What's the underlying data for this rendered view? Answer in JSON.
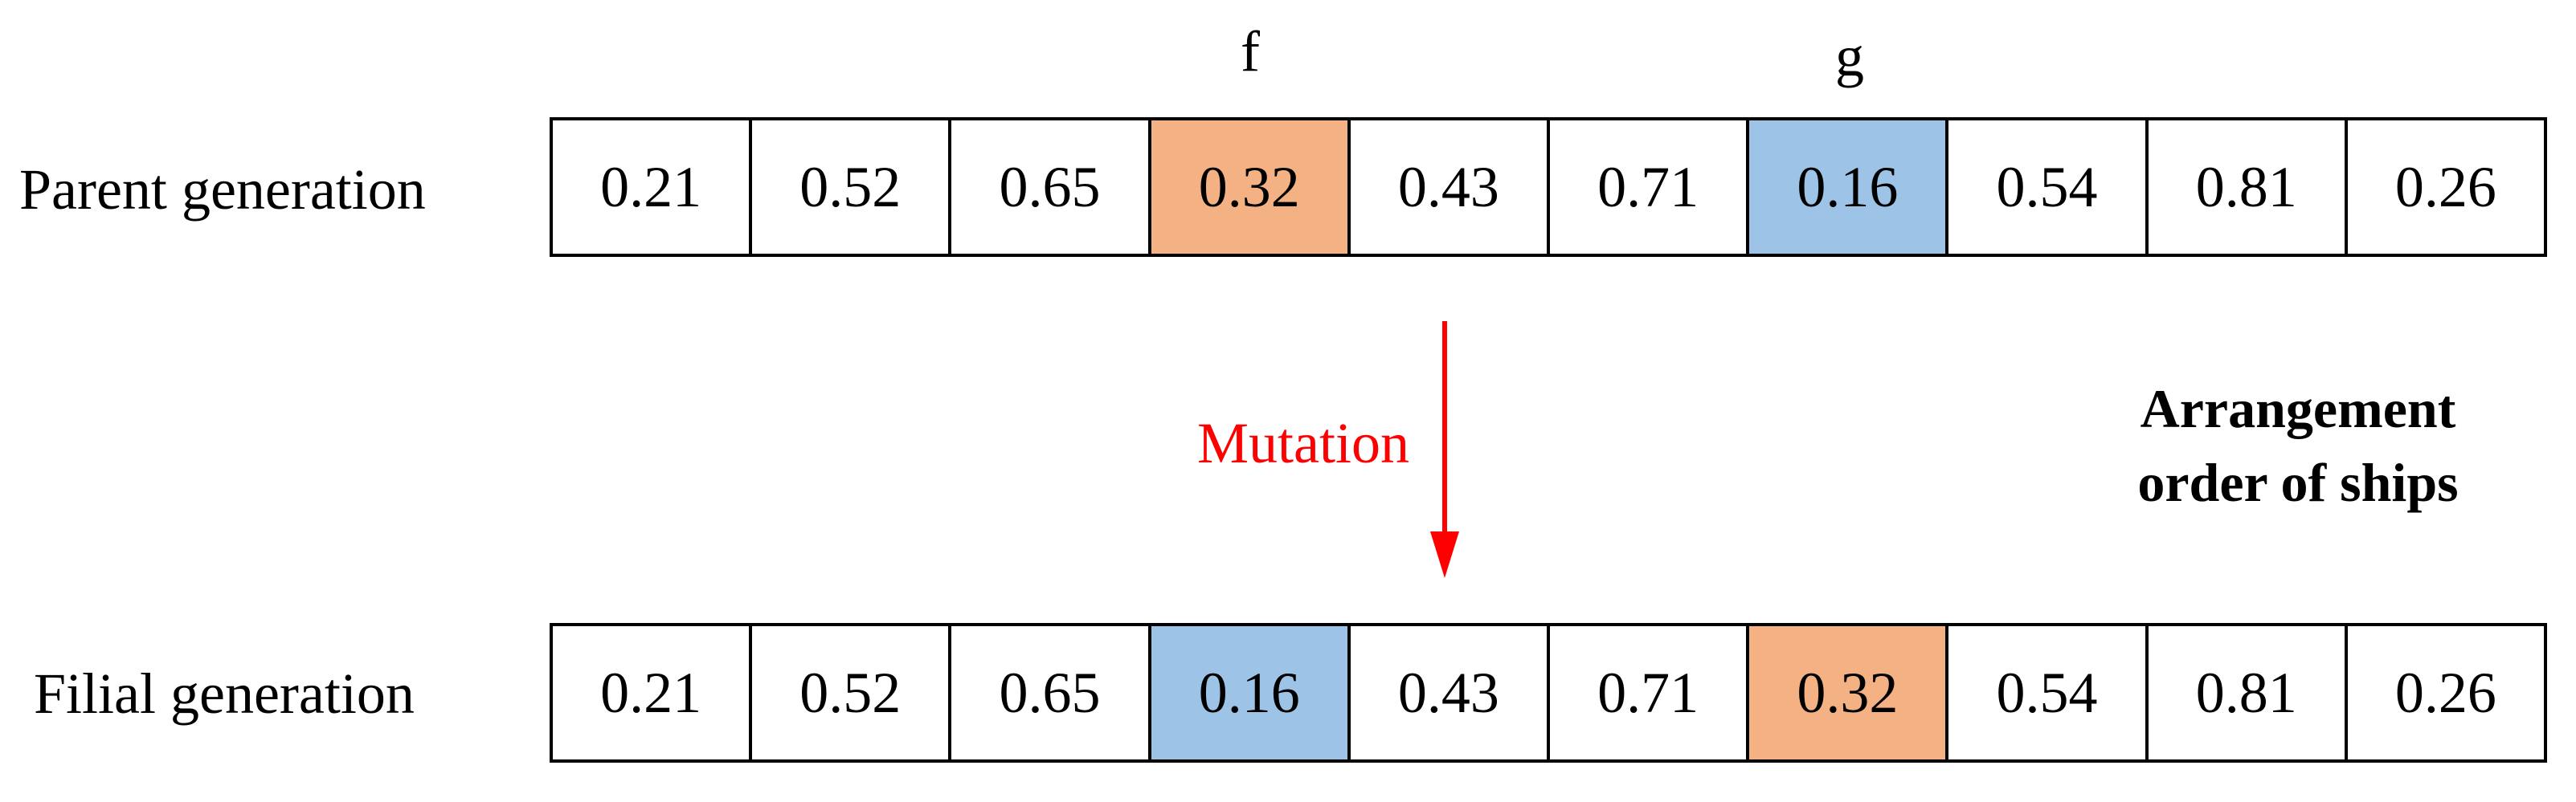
{
  "parent": {
    "label": "Parent generation",
    "genes": [
      {
        "value": "0.21",
        "color": ""
      },
      {
        "value": "0.52",
        "color": ""
      },
      {
        "value": "0.65",
        "color": ""
      },
      {
        "value": "0.32",
        "color": "#F4B183"
      },
      {
        "value": "0.43",
        "color": ""
      },
      {
        "value": "0.71",
        "color": ""
      },
      {
        "value": "0.16",
        "color": "#9DC3E6"
      },
      {
        "value": "0.54",
        "color": ""
      },
      {
        "value": "0.81",
        "color": ""
      },
      {
        "value": "0.26",
        "color": ""
      }
    ]
  },
  "filial": {
    "label": "Filial generation",
    "genes": [
      {
        "value": "0.21",
        "color": ""
      },
      {
        "value": "0.52",
        "color": ""
      },
      {
        "value": "0.65",
        "color": ""
      },
      {
        "value": "0.16",
        "color": "#9DC3E6"
      },
      {
        "value": "0.43",
        "color": ""
      },
      {
        "value": "0.71",
        "color": ""
      },
      {
        "value": "0.32",
        "color": "#F4B183"
      },
      {
        "value": "0.54",
        "color": ""
      },
      {
        "value": "0.81",
        "color": ""
      },
      {
        "value": "0.26",
        "color": ""
      }
    ]
  },
  "markers": {
    "f": "f",
    "g": "g"
  },
  "mutation": {
    "label": "Mutation",
    "color": "#FF0000"
  },
  "side_note": {
    "line1": "Arrangement",
    "line2": "order of ships"
  }
}
